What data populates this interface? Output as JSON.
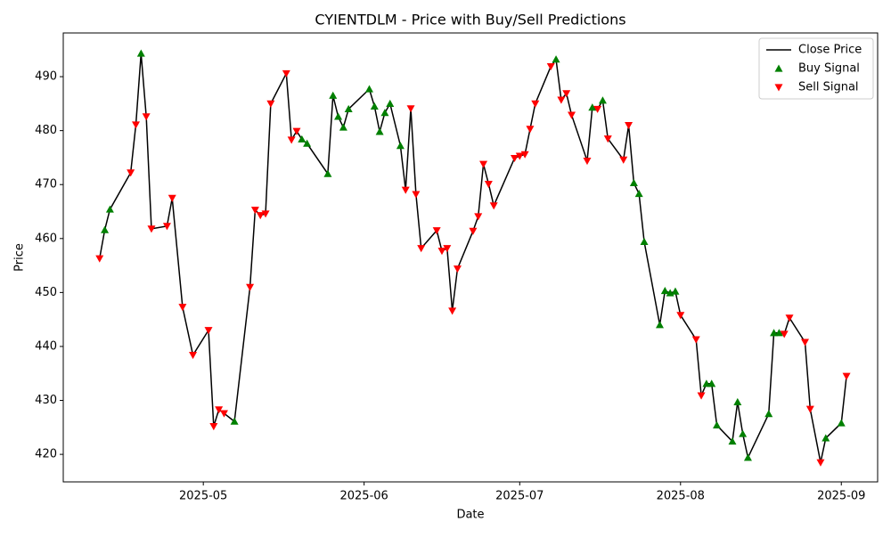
{
  "chart_data": {
    "type": "line",
    "title": "CYIENTDLM - Price with Buy/Sell Predictions",
    "x_label": "Date",
    "y_label": "Price",
    "x": [
      "2025-04-11",
      "2025-04-12",
      "2025-04-13",
      "2025-04-17",
      "2025-04-18",
      "2025-04-19",
      "2025-04-20",
      "2025-04-21",
      "2025-04-24",
      "2025-04-25",
      "2025-04-27",
      "2025-04-29",
      "2025-05-02",
      "2025-05-03",
      "2025-05-04",
      "2025-05-05",
      "2025-05-07",
      "2025-05-10",
      "2025-05-11",
      "2025-05-12",
      "2025-05-13",
      "2025-05-14",
      "2025-05-17",
      "2025-05-18",
      "2025-05-19",
      "2025-05-20",
      "2025-05-21",
      "2025-05-25",
      "2025-05-26",
      "2025-05-27",
      "2025-05-28",
      "2025-05-29",
      "2025-06-02",
      "2025-06-03",
      "2025-06-04",
      "2025-06-05",
      "2025-06-06",
      "2025-06-08",
      "2025-06-09",
      "2025-06-10",
      "2025-06-11",
      "2025-06-12",
      "2025-06-15",
      "2025-06-16",
      "2025-06-17",
      "2025-06-18",
      "2025-06-19",
      "2025-06-22",
      "2025-06-23",
      "2025-06-24",
      "2025-06-25",
      "2025-06-26",
      "2025-06-30",
      "2025-07-01",
      "2025-07-02",
      "2025-07-03",
      "2025-07-04",
      "2025-07-07",
      "2025-07-08",
      "2025-07-09",
      "2025-07-10",
      "2025-07-11",
      "2025-07-14",
      "2025-07-15",
      "2025-07-16",
      "2025-07-17",
      "2025-07-18",
      "2025-07-21",
      "2025-07-22",
      "2025-07-23",
      "2025-07-24",
      "2025-07-25",
      "2025-07-28",
      "2025-07-29",
      "2025-07-30",
      "2025-07-31",
      "2025-08-01",
      "2025-08-04",
      "2025-08-05",
      "2025-08-06",
      "2025-08-07",
      "2025-08-08",
      "2025-08-11",
      "2025-08-12",
      "2025-08-13",
      "2025-08-14",
      "2025-08-18",
      "2025-08-19",
      "2025-08-20",
      "2025-08-21",
      "2025-08-22",
      "2025-08-25",
      "2025-08-26",
      "2025-08-28",
      "2025-08-29",
      "2025-09-01",
      "2025-09-02"
    ],
    "series": [
      {
        "name": "Close Price",
        "color": "#000000",
        "marker": "line",
        "values": [
          456.3,
          461.6,
          465.4,
          472.2,
          481.1,
          494.3,
          482.6,
          461.8,
          462.3,
          467.5,
          447.3,
          438.4,
          443.0,
          425.2,
          428.3,
          427.6,
          426.1,
          451.0,
          465.3,
          464.3,
          464.6,
          485.0,
          490.6,
          478.3,
          479.9,
          478.4,
          477.6,
          472.0,
          486.5,
          482.6,
          480.6,
          484.0,
          487.7,
          484.5,
          479.8,
          483.3,
          485.0,
          477.2,
          469.0,
          484.1,
          468.2,
          458.2,
          461.5,
          457.7,
          458.2,
          446.6,
          454.4,
          461.4,
          464.1,
          473.8,
          470.1,
          466.1,
          474.9,
          475.3,
          475.6,
          480.3,
          485.0,
          491.9,
          493.2,
          485.7,
          486.9,
          482.9,
          474.4,
          484.3,
          484.0,
          485.6,
          478.5,
          474.6,
          481.0,
          470.3,
          468.3,
          459.4,
          444.0,
          450.3,
          449.9,
          450.2,
          445.8,
          441.3,
          430.9,
          433.1,
          433.1,
          425.4,
          422.4,
          429.7,
          423.8,
          419.4,
          427.5,
          442.5,
          442.5,
          442.3,
          445.3,
          440.8,
          428.4,
          418.5,
          423.0,
          425.8,
          434.5
        ]
      },
      {
        "name": "Buy Signal",
        "color": "#008000",
        "marker": "triangle-up",
        "values": [
          null,
          461.6,
          465.4,
          null,
          null,
          494.3,
          null,
          null,
          null,
          null,
          null,
          null,
          null,
          null,
          null,
          null,
          426.1,
          null,
          null,
          null,
          null,
          null,
          null,
          null,
          null,
          478.4,
          477.6,
          472.0,
          486.5,
          482.6,
          480.6,
          484.0,
          487.7,
          484.5,
          479.8,
          483.3,
          485.0,
          477.2,
          null,
          null,
          null,
          null,
          null,
          null,
          null,
          null,
          null,
          null,
          null,
          null,
          null,
          null,
          null,
          null,
          null,
          null,
          null,
          null,
          493.2,
          null,
          null,
          null,
          null,
          484.3,
          null,
          485.6,
          null,
          null,
          null,
          470.3,
          468.3,
          459.4,
          444.0,
          450.3,
          449.9,
          450.2,
          null,
          null,
          null,
          433.1,
          433.1,
          425.4,
          422.4,
          429.7,
          423.8,
          419.4,
          427.5,
          442.5,
          442.5,
          null,
          null,
          null,
          null,
          null,
          423.0,
          425.8,
          null
        ]
      },
      {
        "name": "Sell Signal",
        "color": "#ff0000",
        "marker": "triangle-down",
        "values": [
          456.3,
          null,
          null,
          472.2,
          481.1,
          null,
          482.6,
          461.8,
          462.3,
          467.5,
          447.3,
          438.4,
          443.0,
          425.2,
          428.3,
          427.6,
          null,
          451.0,
          465.3,
          464.3,
          464.6,
          485.0,
          490.6,
          478.3,
          479.9,
          null,
          null,
          null,
          null,
          null,
          null,
          null,
          null,
          null,
          null,
          null,
          null,
          null,
          469.0,
          484.1,
          468.2,
          458.2,
          461.5,
          457.7,
          458.2,
          446.6,
          454.4,
          461.4,
          464.1,
          473.8,
          470.1,
          466.1,
          474.9,
          475.3,
          475.6,
          480.3,
          485.0,
          491.9,
          null,
          485.7,
          486.9,
          482.9,
          474.4,
          null,
          484.0,
          null,
          478.5,
          474.6,
          481.0,
          null,
          null,
          null,
          null,
          null,
          null,
          null,
          445.8,
          441.3,
          430.9,
          null,
          null,
          null,
          null,
          null,
          null,
          null,
          null,
          null,
          null,
          442.3,
          445.3,
          440.8,
          428.4,
          418.5,
          null,
          null,
          434.5
        ]
      }
    ],
    "xlim": [
      "2025-04-04",
      "2025-09-08"
    ],
    "xticks": [
      {
        "value": "2025-05-01",
        "label": "2025-05"
      },
      {
        "value": "2025-06-01",
        "label": "2025-06"
      },
      {
        "value": "2025-07-01",
        "label": "2025-07"
      },
      {
        "value": "2025-08-01",
        "label": "2025-08"
      },
      {
        "value": "2025-09-01",
        "label": "2025-09"
      }
    ],
    "ylim": [
      414.9,
      498.1
    ],
    "yticks": [
      420,
      430,
      440,
      450,
      460,
      470,
      480,
      490
    ],
    "grid": false,
    "legend": "upper right"
  }
}
